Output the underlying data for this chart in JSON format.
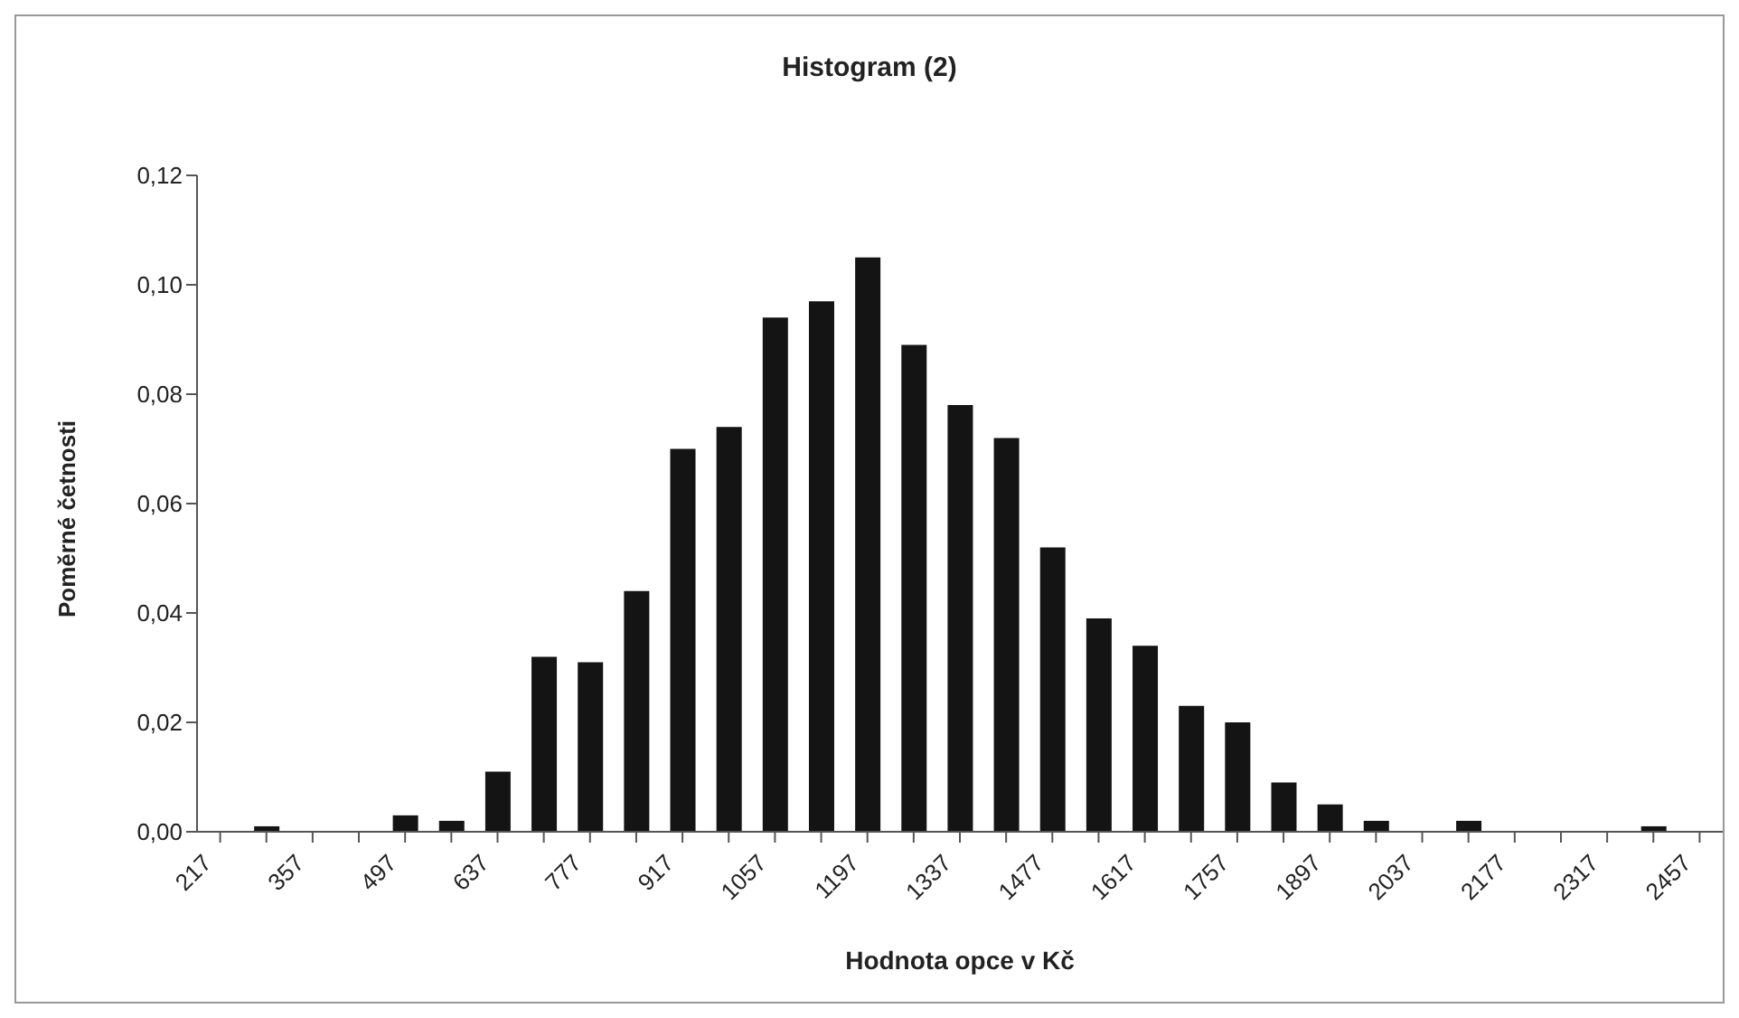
{
  "chart_data": {
    "type": "bar",
    "title": "Histogram (2)",
    "xlabel": "Hodnota opce v Kč",
    "ylabel": "Poměrné četnosti",
    "categories": [
      "217",
      null,
      "357",
      null,
      "497",
      null,
      "637",
      null,
      "777",
      null,
      "917",
      null,
      "1057",
      null,
      "1197",
      null,
      "1337",
      null,
      "1477",
      null,
      "1617",
      null,
      "1757",
      null,
      "1897",
      null,
      "2037",
      null,
      "2177",
      null,
      "2317",
      null,
      "2457"
    ],
    "values": [
      0,
      0.001,
      0,
      0,
      0.003,
      0.002,
      0.011,
      0.032,
      0.031,
      0.044,
      0.07,
      0.074,
      0.094,
      0.097,
      0.105,
      0.089,
      0.078,
      0.072,
      0.052,
      0.039,
      0.034,
      0.023,
      0.02,
      0.009,
      0.005,
      0.002,
      0,
      0.002,
      0,
      0,
      0,
      0.001,
      0
    ],
    "color": "#141414",
    "ylim": [
      0,
      0.12
    ],
    "yticks": [
      {
        "value": 0,
        "label": "0,00"
      },
      {
        "value": 0.02,
        "label": "0,02"
      },
      {
        "value": 0.04,
        "label": "0,04"
      },
      {
        "value": 0.06,
        "label": "0,06"
      },
      {
        "value": 0.08,
        "label": "0,08"
      },
      {
        "value": 0.1,
        "label": "0,10"
      },
      {
        "value": 0.12,
        "label": "0,12"
      }
    ],
    "grid": false,
    "legend": false
  }
}
